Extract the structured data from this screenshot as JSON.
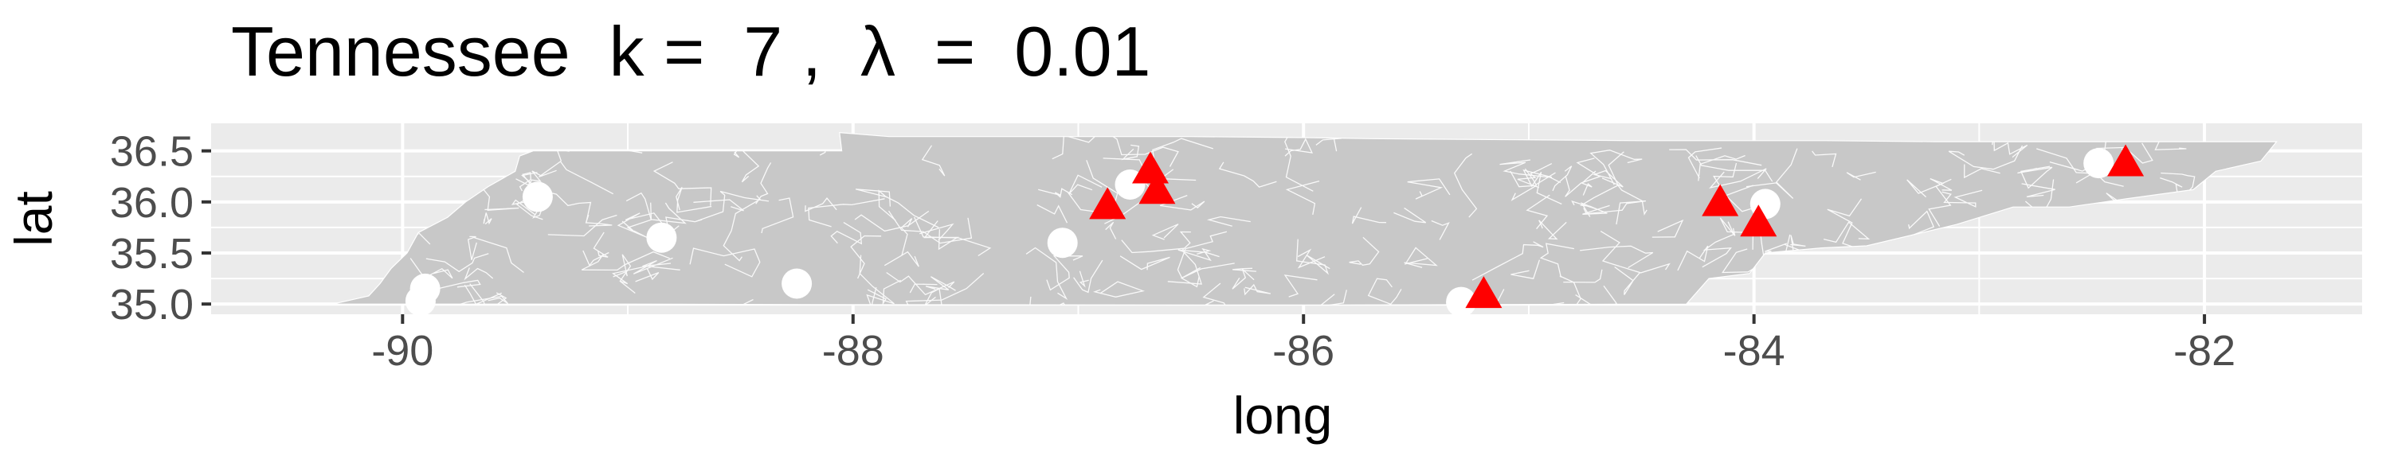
{
  "chart_data": {
    "type": "scatter",
    "title": "Tennessee  k =  7 ,  λ  =  0.01",
    "xlabel": "long",
    "ylabel": "lat",
    "xlim": [
      -90.85,
      -81.3
    ],
    "ylim": [
      34.9,
      36.77
    ],
    "x_ticks": [
      -90,
      -88,
      -86,
      -84,
      -82
    ],
    "x_tick_labels": [
      "-90",
      "-88",
      "-86",
      "-84",
      "-82"
    ],
    "y_ticks": [
      35.0,
      35.5,
      36.0,
      36.5
    ],
    "y_tick_labels": [
      "35.0",
      "35.5",
      "36.0",
      "36.5"
    ],
    "grid": true,
    "legend": "none",
    "background_color": "#ebebeb",
    "grid_color": "#ffffff",
    "region_fill": "#c8c8c8",
    "region_border_color": "#ffffff",
    "series": [
      {
        "marker": "circle",
        "color": "#ffffff",
        "points": [
          {
            "x": -89.4,
            "y": 36.05
          },
          {
            "x": -88.85,
            "y": 35.65
          },
          {
            "x": -88.25,
            "y": 35.2
          },
          {
            "x": -89.9,
            "y": 35.15
          },
          {
            "x": -89.92,
            "y": 35.03
          },
          {
            "x": -87.07,
            "y": 35.6
          },
          {
            "x": -86.77,
            "y": 36.17
          },
          {
            "x": -85.3,
            "y": 35.02
          },
          {
            "x": -83.95,
            "y": 35.98
          },
          {
            "x": -82.47,
            "y": 36.38
          }
        ]
      },
      {
        "marker": "triangle",
        "color": "#ff0000",
        "points": [
          {
            "x": -86.68,
            "y": 36.3
          },
          {
            "x": -86.65,
            "y": 36.1
          },
          {
            "x": -86.87,
            "y": 35.95
          },
          {
            "x": -84.15,
            "y": 35.98
          },
          {
            "x": -83.98,
            "y": 35.78
          },
          {
            "x": -85.2,
            "y": 35.08
          },
          {
            "x": -82.35,
            "y": 36.37
          }
        ]
      }
    ]
  }
}
